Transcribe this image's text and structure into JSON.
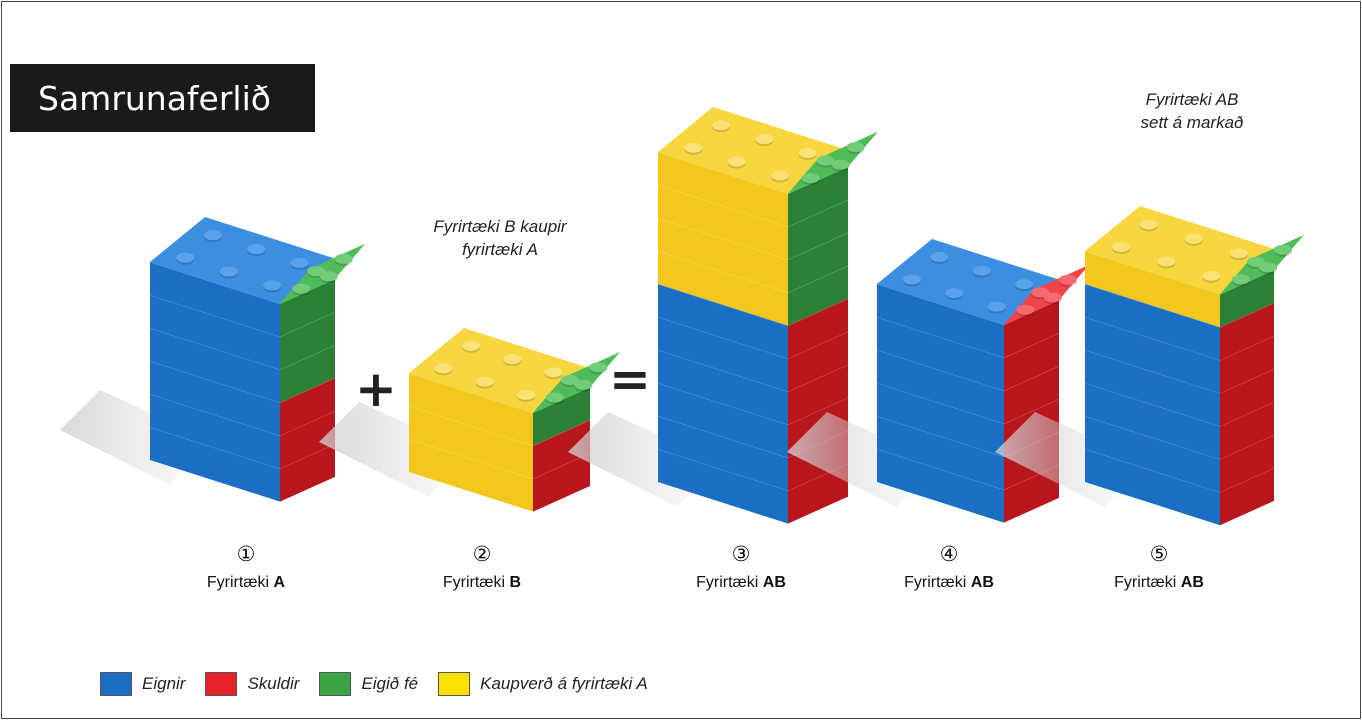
{
  "title": "Samrunaferlið",
  "annotations": {
    "step2": [
      "Fyrirtæki B kaupir",
      "fyrirtæki A"
    ],
    "step5": [
      "Fyrirtæki AB",
      "sett á markað"
    ]
  },
  "operators": {
    "plus": "+",
    "equals": "="
  },
  "steps": [
    {
      "number": "①",
      "label": "Fyrirtæki",
      "company": "A"
    },
    {
      "number": "②",
      "label": "Fyrirtæki",
      "company": "B"
    },
    {
      "number": "③",
      "label": "Fyrirtæki",
      "company": "AB"
    },
    {
      "number": "④",
      "label": "Fyrirtæki",
      "company": "AB"
    },
    {
      "number": "⑤",
      "label": "Fyrirtæki",
      "company": "AB"
    }
  ],
  "legend": [
    {
      "label": "Eignir",
      "color": "#1a6fc4",
      "icon": "square-swatch"
    },
    {
      "label": "Skuldir",
      "color": "#e5212a",
      "icon": "square-swatch"
    },
    {
      "label": "Eigið fé",
      "color": "#3aa545",
      "icon": "square-swatch"
    },
    {
      "label": "Kaupverð á fyrirtæki A",
      "color": "#f2c81e",
      "icon": "square-swatch"
    }
  ],
  "stacks": [
    {
      "left": [
        {
          "color": "blue",
          "count": 6
        }
      ],
      "right": [
        {
          "color": "red",
          "count": 3
        },
        {
          "color": "green",
          "count": 3
        }
      ]
    },
    {
      "left": [
        {
          "color": "yellow",
          "count": 3
        }
      ],
      "right": [
        {
          "color": "red",
          "count": 2
        },
        {
          "color": "green",
          "count": 1
        }
      ]
    },
    {
      "left": [
        {
          "color": "blue",
          "count": 6
        },
        {
          "color": "yellow",
          "count": 4
        }
      ],
      "right": [
        {
          "color": "red",
          "count": 6
        },
        {
          "color": "green",
          "count": 4
        }
      ]
    },
    {
      "left": [
        {
          "color": "blue",
          "count": 6
        }
      ],
      "right": [
        {
          "color": "red",
          "count": 6
        }
      ]
    },
    {
      "left": [
        {
          "color": "blue",
          "count": 6
        },
        {
          "color": "yellow",
          "count": 1
        }
      ],
      "right": [
        {
          "color": "red",
          "count": 6
        },
        {
          "color": "green",
          "count": 1
        }
      ]
    }
  ]
}
